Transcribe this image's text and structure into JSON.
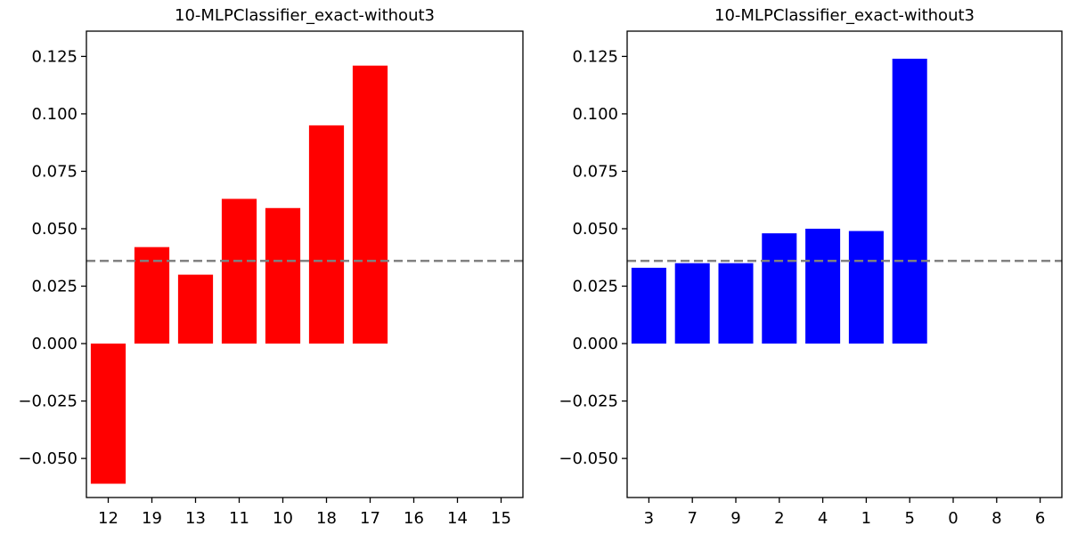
{
  "chart_data": [
    {
      "type": "bar",
      "title": "10-MLPClassifier_exact-without3",
      "categories": [
        "12",
        "19",
        "13",
        "11",
        "10",
        "18",
        "17",
        "16",
        "14",
        "15"
      ],
      "values": [
        -0.061,
        0.042,
        0.03,
        0.063,
        0.059,
        0.095,
        0.121,
        null,
        null,
        null
      ],
      "xlabel": "",
      "ylabel": "",
      "ylim": [
        -0.067,
        0.136
      ],
      "yticks": [
        -0.05,
        -0.025,
        0.0,
        0.025,
        0.05,
        0.075,
        0.1,
        0.125
      ],
      "ytick_labels": [
        "−0.050",
        "−0.025",
        "0.000",
        "0.025",
        "0.050",
        "0.075",
        "0.100",
        "0.125"
      ],
      "bar_color": "#ff0000",
      "reference_line": {
        "y": 0.036,
        "color": "#808080",
        "style": "dashed"
      },
      "grid": false
    },
    {
      "type": "bar",
      "title": "10-MLPClassifier_exact-without3",
      "categories": [
        "3",
        "7",
        "9",
        "2",
        "4",
        "1",
        "5",
        "0",
        "8",
        "6"
      ],
      "values": [
        0.033,
        0.035,
        0.035,
        0.048,
        0.05,
        0.049,
        0.124,
        null,
        null,
        null
      ],
      "xlabel": "",
      "ylabel": "",
      "ylim": [
        -0.067,
        0.136
      ],
      "yticks": [
        -0.05,
        -0.025,
        0.0,
        0.025,
        0.05,
        0.075,
        0.1,
        0.125
      ],
      "ytick_labels": [
        "−0.050",
        "−0.025",
        "0.000",
        "0.025",
        "0.050",
        "0.075",
        "0.100",
        "0.125"
      ],
      "bar_color": "#0000ff",
      "reference_line": {
        "y": 0.036,
        "color": "#808080",
        "style": "dashed"
      },
      "grid": false
    }
  ]
}
